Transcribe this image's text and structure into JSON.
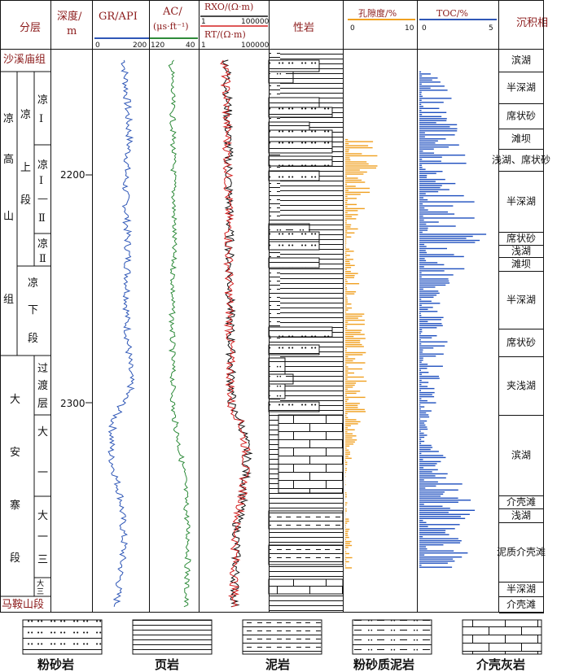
{
  "headers": {
    "layer": "分层",
    "depth": "深度/",
    "depth_unit": "m",
    "gr": "GR/API",
    "ac": "AC/",
    "ac_unit": "(μs·ft⁻¹)",
    "rxo": "RXO/(Ω·m)",
    "rt": "RT/(Ω·m)",
    "lith": "性岩",
    "por": "孔隙度/%",
    "toc": "TOC/%",
    "env": "沉积相"
  },
  "scales": {
    "gr_min": "0",
    "gr_max": "200",
    "ac_min": "120",
    "ac_max": "40",
    "rxo_min": "1",
    "rxo_max": "100000",
    "rt_min": "1",
    "rt_max": "100000",
    "por_min": "0",
    "por_max": "10",
    "toc_min": "0",
    "toc_max": "5"
  },
  "depth_ticks": [
    "2200",
    "2300"
  ],
  "formations": {
    "top": "沙溪庙组",
    "bottom": "马鞍山段",
    "lianggaoshan": [
      "凉",
      "高",
      "山",
      "组"
    ],
    "upper_member": [
      "上",
      "段"
    ],
    "lower_member": [
      "凉",
      "下",
      "段"
    ],
    "liang_letter": "凉",
    "sub_l1": [
      "凉",
      "Ⅰ"
    ],
    "sub_l1_2": [
      "凉",
      "Ⅰ",
      "—",
      "Ⅱ"
    ],
    "sub_l2": [
      "凉",
      "Ⅱ"
    ],
    "daanzhai": [
      "大",
      "安",
      "寨",
      "段"
    ],
    "transition": [
      "过",
      "渡",
      "层"
    ],
    "da1": [
      "大",
      "一"
    ],
    "da1_3": [
      "大",
      "一",
      "三"
    ],
    "da3": [
      "大",
      "三"
    ]
  },
  "environments": [
    "滨湖",
    "半深湖",
    "席状砂",
    "滩坝",
    "浅湖、席状砂",
    "半深湖",
    "席状砂",
    "浅湖",
    "滩坝",
    "半深湖",
    "席状砂",
    "夹浅湖",
    "滨湖",
    "介壳滩",
    "浅湖",
    "泥质介壳滩",
    "半深湖",
    "介壳滩"
  ],
  "legend": [
    "粉砂岩",
    "页岩",
    "泥岩",
    "粉砂质泥岩",
    "介壳灰岩"
  ],
  "chart_data": {
    "type": "line",
    "depth_range_m": [
      2140,
      2390
    ],
    "curves": {
      "GR_API": {
        "range": [
          0,
          200
        ],
        "color": "#2f57b7",
        "depth": [
          2145,
          2160,
          2180,
          2200,
          2230,
          2260,
          2290,
          2305,
          2320,
          2340,
          2360,
          2388
        ],
        "values": [
          110,
          120,
          130,
          115,
          125,
          120,
          135,
          70,
          60,
          100,
          110,
          80
        ]
      },
      "AC": {
        "range": [
          120,
          40
        ],
        "color": "#2e8b3a",
        "depth": [
          2145,
          2180,
          2220,
          2260,
          2300,
          2330,
          2360,
          2388
        ],
        "values": [
          85,
          82,
          80,
          84,
          82,
          62,
          55,
          60
        ]
      },
      "RXO": {
        "range": [
          1,
          100000
        ],
        "scale": "log",
        "color": "#111111",
        "depth": [
          2145,
          2200,
          2260,
          2300,
          2320,
          2350,
          2388
        ],
        "values": [
          80,
          120,
          150,
          200,
          3000,
          500,
          300
        ]
      },
      "RT": {
        "range": [
          1,
          100000
        ],
        "scale": "log",
        "color": "#d42020",
        "depth": [
          2145,
          2200,
          2260,
          2300,
          2320,
          2350,
          2388
        ],
        "values": [
          60,
          100,
          130,
          170,
          2500,
          420,
          260
        ]
      },
      "porosity_pct": {
        "range": [
          0,
          10
        ],
        "color": "#f0a020",
        "depth": [
          2180,
          2200,
          2225,
          2250,
          2275,
          2300,
          2330,
          2370
        ],
        "values": [
          5.5,
          3.0,
          1.0,
          2.0,
          2.5,
          2.5,
          0.0,
          1.0
        ]
      },
      "TOC_pct": {
        "range": [
          0,
          5
        ],
        "color": "#1f4fbf",
        "depth": [
          2150,
          2165,
          2195,
          2215,
          2225,
          2250,
          2270,
          2310,
          2330,
          2350,
          2370
        ],
        "values": [
          1.0,
          2.0,
          2.5,
          3.0,
          3.5,
          1.0,
          1.5,
          0.5,
          2.0,
          3.5,
          2.0
        ]
      }
    }
  }
}
